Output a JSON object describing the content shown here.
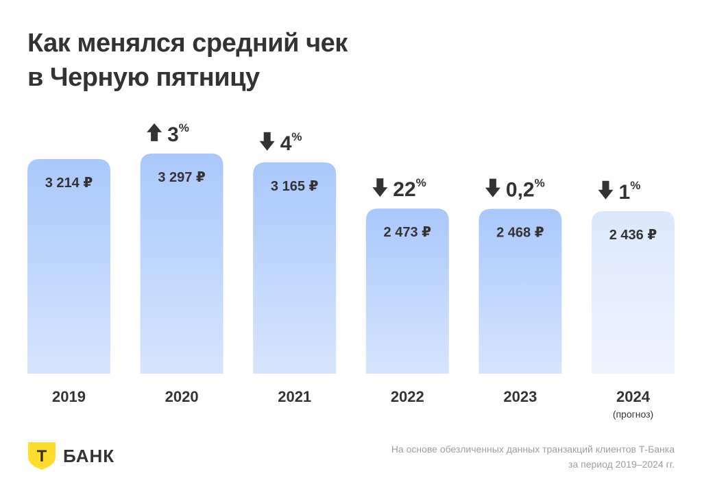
{
  "title": {
    "line1": "Как менялся средний чек",
    "line2": "в Черную пятницу"
  },
  "chart_data": {
    "type": "bar",
    "title": "Как менялся средний чек в Черную пятницу",
    "categories": [
      "2019",
      "2020",
      "2021",
      "2022",
      "2023",
      "2024"
    ],
    "category_notes": [
      "",
      "",
      "",
      "",
      "",
      "(прогноз)"
    ],
    "values": [
      3214,
      3297,
      3165,
      2473,
      2468,
      2436
    ],
    "value_labels": [
      "3 214 ₽",
      "3 297 ₽",
      "3 165 ₽",
      "2 473 ₽",
      "2 468 ₽",
      "2 436 ₽"
    ],
    "changes": [
      null,
      {
        "direction": "up",
        "value": "3",
        "unit": "%"
      },
      {
        "direction": "down",
        "value": "4",
        "unit": "%"
      },
      {
        "direction": "down",
        "value": "22",
        "unit": "%"
      },
      {
        "direction": "down",
        "value": "0,2",
        "unit": "%"
      },
      {
        "direction": "down",
        "value": "1",
        "unit": "%"
      }
    ],
    "forecast_index": 5,
    "grid": false,
    "legend": "none",
    "colors": {
      "bar_top": "#a9c8fb",
      "bar_bottom": "#d6e5fd",
      "forecast_top": "#dbe8fd",
      "forecast_bottom": "#eef4fe"
    }
  },
  "brand": {
    "name": "БАНК",
    "shield_letter": "Т",
    "shield_color": "#ffdd2d",
    "icon": "shield-icon"
  },
  "footnote": {
    "line1": "На основе обезличенных данных транзакций клиентов Т-Банка",
    "line2": "за период 2019–2024 гг."
  }
}
